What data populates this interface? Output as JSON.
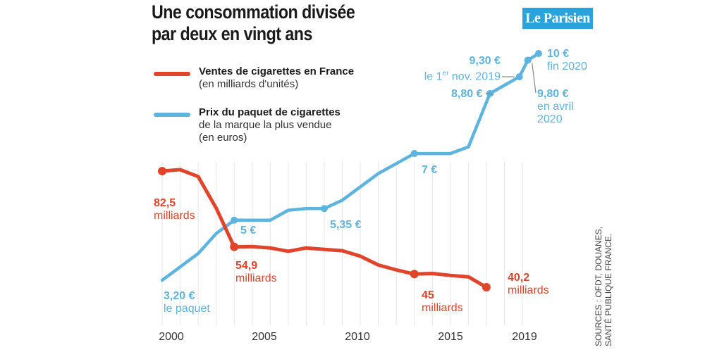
{
  "title_line1": "Une consommation divisée",
  "title_line2": "par deux en vingt ans",
  "logo": "Le Parisien",
  "legend": {
    "sales_title": "Ventes de cigarettes en France",
    "sales_sub": "(en milliards d'unités)",
    "price_title": "Prix du paquet de cigarettes",
    "price_sub1": "de la marque la plus vendue",
    "price_sub2": "(en euros)"
  },
  "source_line1": "SOURCES : OFDT, DOUANES,",
  "source_line2": "SANTÉ PUBLIQUE FRANCE.",
  "annotations": {
    "s2000_value": "82,5",
    "s2000_unit": "milliards",
    "s2004_value": "54,9",
    "s2004_unit": "milliards",
    "s2014_value": "45",
    "s2014_unit": "milliards",
    "s2018_value": "40,2",
    "s2018_unit": "milliards",
    "p2000_value": "3,20 €",
    "p2000_unit": "le paquet",
    "p2004_value": "5 €",
    "p2009_value": "5,35 €",
    "p2014_value": "7 €",
    "p_mar2018_value": "8,80 €",
    "p_nov2019_value": "9,30 €",
    "p_nov2019_date_pre": "le 1",
    "p_nov2019_date_sup": "er",
    "p_nov2019_date_post": " nov. 2019",
    "p_apr2020_value": "9,80 €",
    "p_apr2020_date1": "en avril",
    "p_apr2020_date2": "2020",
    "p_end2020_value": "10 €",
    "p_end2020_date": "fin 2020"
  },
  "chart_data": {
    "type": "line",
    "title": "Une consommation divisée par deux en vingt ans",
    "xlabel": "",
    "ylabel": "",
    "x_ticks": [
      "2000",
      "2005",
      "2010",
      "2015",
      "2019"
    ],
    "xlim": [
      2000,
      2020.9
    ],
    "grid": "vertical gridlines",
    "legend_position": "top-left",
    "colors": {
      "sales": "#e0442b",
      "price": "#5db4de",
      "grid": "#e6e6e6",
      "connector": "#888888"
    },
    "series": [
      {
        "name": "Ventes de cigarettes en France",
        "unit": "milliards d'unités",
        "ylim": [
          35,
          90
        ],
        "x": [
          2000,
          2001,
          2002,
          2003,
          2004,
          2005,
          2006,
          2007,
          2008,
          2009,
          2010,
          2011,
          2012,
          2013,
          2014,
          2015,
          2016,
          2017,
          2018
        ],
        "y": [
          82.5,
          83.0,
          80.5,
          69.0,
          54.9,
          55.0,
          54.5,
          53.3,
          54.5,
          54.0,
          53.5,
          51.5,
          48.3,
          46.5,
          45.0,
          45.2,
          44.5,
          44.0,
          40.2
        ]
      },
      {
        "name": "Prix du paquet de cigarettes de la marque la plus vendue",
        "unit": "euros",
        "ylim": [
          2.9,
          10.2
        ],
        "x": [
          2000,
          2001,
          2002,
          2003,
          2004,
          2005,
          2006,
          2007,
          2008,
          2009,
          2010,
          2011,
          2012,
          2013,
          2014,
          2015,
          2016,
          2017,
          2018.2,
          2019.83,
          2020.3,
          2020.9
        ],
        "y": [
          3.2,
          3.6,
          4.0,
          4.6,
          5.0,
          5.0,
          5.0,
          5.3,
          5.35,
          5.35,
          5.6,
          6.0,
          6.4,
          6.7,
          7.0,
          7.0,
          7.0,
          7.2,
          8.8,
          9.3,
          9.8,
          10.0
        ]
      }
    ],
    "labeled_points": {
      "sales": [
        [
          2000,
          82.5
        ],
        [
          2004,
          54.9
        ],
        [
          2014,
          45.0
        ],
        [
          2018,
          40.2
        ]
      ],
      "price": [
        [
          2004,
          5.0
        ],
        [
          2009,
          5.35
        ],
        [
          2014,
          7.0
        ],
        [
          2018.2,
          8.8
        ],
        [
          2019.83,
          9.3
        ],
        [
          2020.3,
          9.8
        ],
        [
          2020.9,
          10.0
        ]
      ]
    }
  }
}
